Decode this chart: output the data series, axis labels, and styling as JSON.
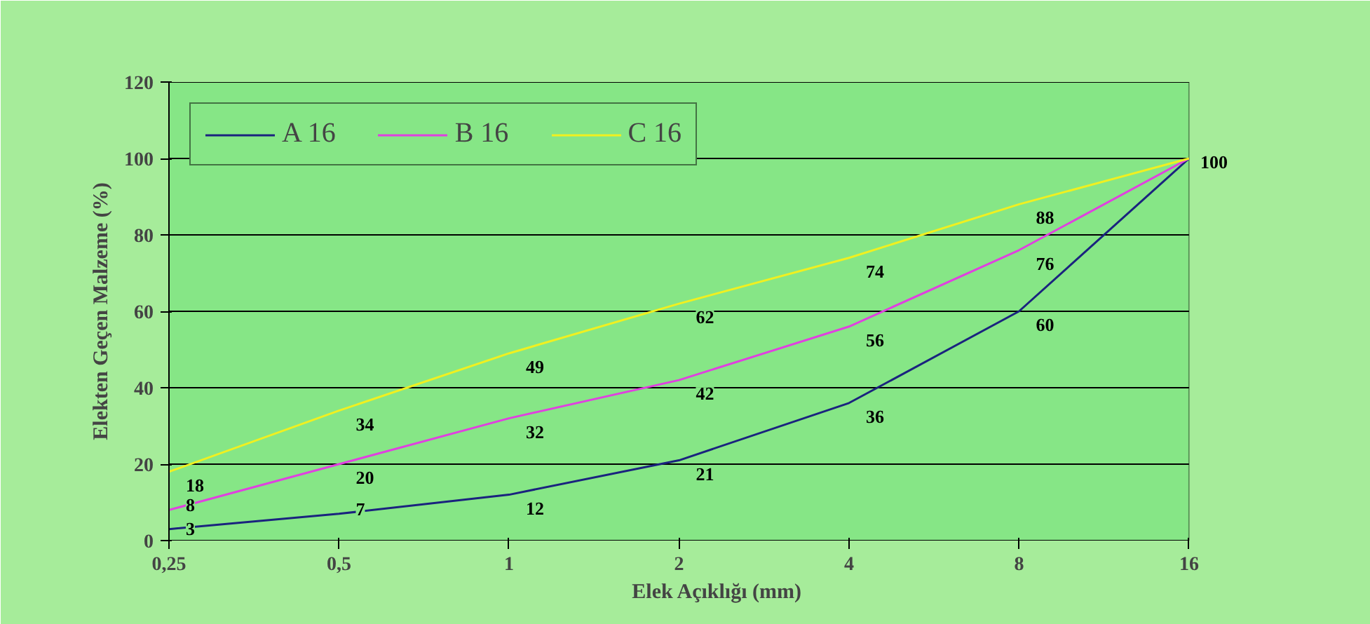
{
  "chart_data": {
    "type": "line",
    "xlabel": "Elek Açıklığı (mm)",
    "ylabel": "Elekten Geçen Malzeme (%)",
    "categories": [
      "0,25",
      "0,5",
      "1",
      "2",
      "4",
      "8",
      "16"
    ],
    "ylim": [
      0,
      120
    ],
    "yticks": [
      0,
      20,
      40,
      60,
      80,
      100,
      120
    ],
    "grid": true,
    "legend": "top left",
    "marker": "none",
    "line_style": "solid",
    "series": [
      {
        "name": "A 16",
        "color": "#1a237e",
        "values": [
          3,
          7,
          12,
          21,
          36,
          60,
          100
        ],
        "value_labels": [
          "3",
          "7",
          "12",
          "21",
          "36",
          "60",
          "100"
        ]
      },
      {
        "name": "B 16",
        "color": "#e040e0",
        "values": [
          8,
          20,
          32,
          42,
          56,
          76,
          100
        ],
        "value_labels": [
          "8",
          "20",
          "32",
          "42",
          "56",
          "76",
          null
        ]
      },
      {
        "name": "C 16",
        "color": "#f0f020",
        "values": [
          18,
          34,
          49,
          62,
          74,
          88,
          100
        ],
        "value_labels": [
          "18",
          "34",
          "49",
          "62",
          "74",
          "88",
          null
        ]
      }
    ]
  }
}
